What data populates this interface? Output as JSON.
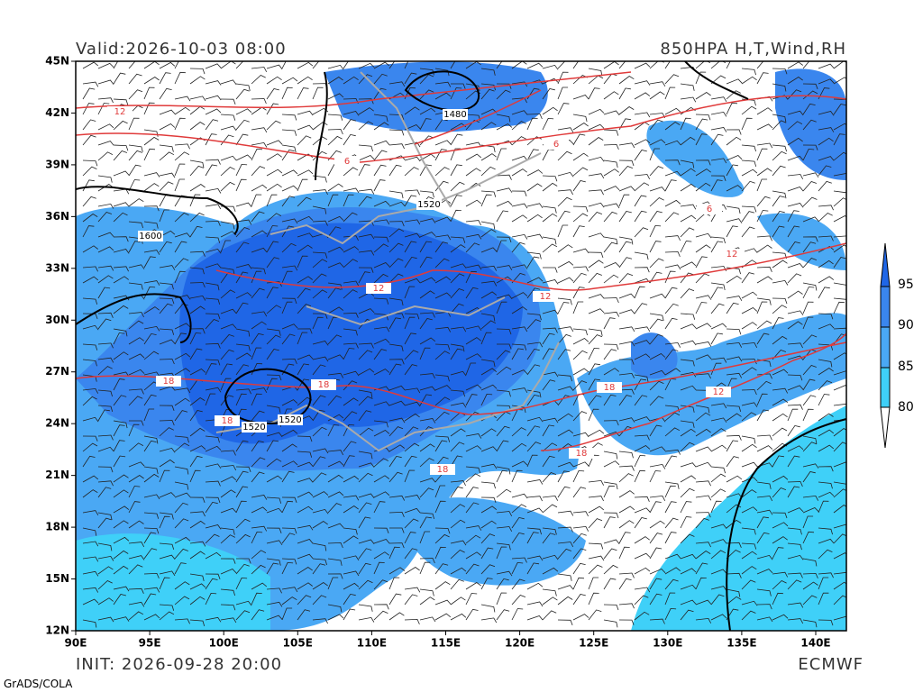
{
  "header": {
    "valid": "Valid:2026-10-03 08:00",
    "product": "850HPA H,T,Wind,RH"
  },
  "footer": {
    "init": "INIT: 2026-09-28 20:00",
    "model": "ECMWF",
    "software": "GrADS/COLA"
  },
  "map": {
    "lat_labels": [
      "45N",
      "42N",
      "39N",
      "36N",
      "33N",
      "30N",
      "27N",
      "24N",
      "21N",
      "18N",
      "15N",
      "12N"
    ],
    "lon_labels": [
      "90E",
      "95E",
      "100E",
      "105E",
      "110E",
      "115E",
      "120E",
      "125E",
      "130E",
      "135E",
      "140E"
    ],
    "contour_labels": [
      "1480",
      "1520",
      "1600",
      "1520",
      "1520",
      "12",
      "12",
      "12",
      "18",
      "18",
      "18",
      "18",
      "18",
      "18",
      "6",
      "6",
      "12",
      "6",
      "12"
    ]
  },
  "colorbar": {
    "levels": [
      "95",
      "90",
      "85",
      "80"
    ]
  }
}
